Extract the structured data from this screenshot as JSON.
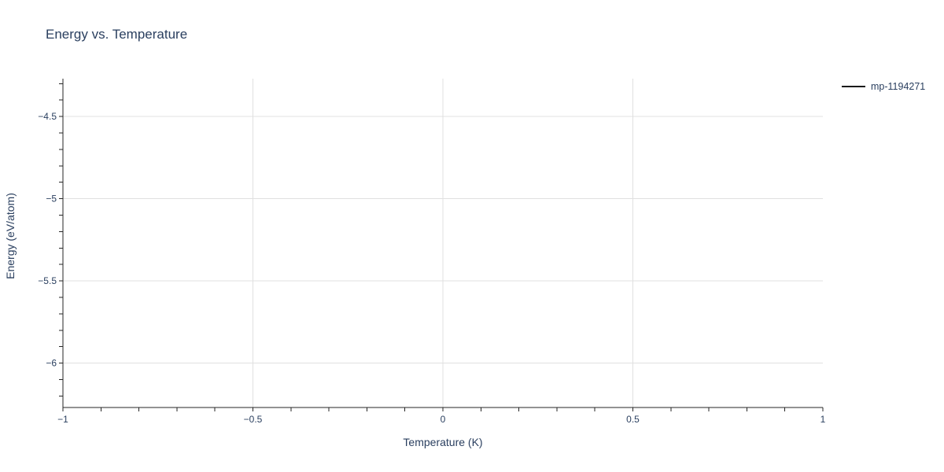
{
  "chart_data": {
    "type": "line",
    "title": "Energy vs. Temperature",
    "xlabel": "Temperature (K)",
    "ylabel": "Energy (eV/atom)",
    "xlim": [
      -1,
      1
    ],
    "ylim": [
      -6.27,
      -4.27
    ],
    "x_tick_values": [
      -1,
      -0.5,
      0,
      0.5,
      1
    ],
    "x_tick_labels": [
      "−1",
      "−0.5",
      "0",
      "0.5",
      "1"
    ],
    "y_tick_values": [
      -4.5,
      -5,
      -5.5,
      -6
    ],
    "y_tick_labels": [
      "−4.5",
      "−5",
      "−5.5",
      "−6"
    ],
    "x_gridline_values": [
      -0.5,
      0,
      0.5
    ],
    "y_gridline_values": [
      -4.5,
      -5,
      -5.5,
      -6
    ],
    "minor_tick_step": 0.1,
    "grid": true,
    "legend_position": "top-right-outside",
    "series": [
      {
        "name": "mp-1194271",
        "color": "#1a1a1a",
        "x": [],
        "y": []
      }
    ],
    "colors": {
      "text": "#2a3f5f",
      "grid": "#e0e0e0",
      "axis": "#262626",
      "background": "#ffffff"
    }
  }
}
